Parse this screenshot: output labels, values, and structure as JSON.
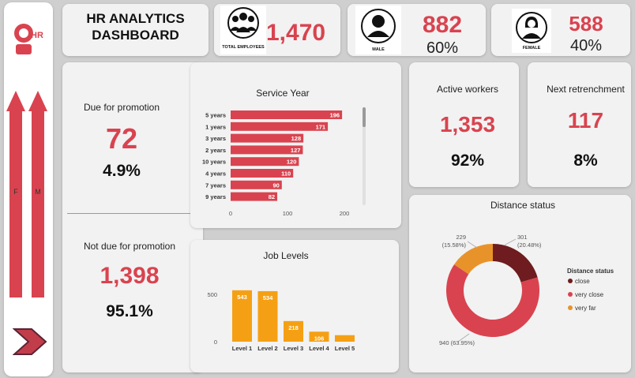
{
  "app": {
    "title_line1": "HR ANALYTICS",
    "title_line2": "DASHBOARD",
    "logo_text": "HR"
  },
  "sidebar": {
    "filter_f": "F",
    "filter_m": "M"
  },
  "kpis": {
    "total_employees": {
      "label": "TOTAL EMPLOYEES",
      "value": "1,470"
    },
    "male": {
      "label": "MALE",
      "value": "882",
      "pct": "60%"
    },
    "female": {
      "label": "FEMALE",
      "value": "588",
      "pct": "40%"
    },
    "due_promotion": {
      "label": "Due for promotion",
      "value": "72",
      "pct": "4.9%"
    },
    "not_due_promotion": {
      "label": "Not due for promotion",
      "value": "1,398",
      "pct": "95.1%"
    },
    "active_workers": {
      "label": "Active workers",
      "value": "1,353",
      "pct": "92%"
    },
    "next_retrenchment": {
      "label": "Next retrenchment",
      "value": "117",
      "pct": "8%"
    }
  },
  "colors": {
    "accent": "#d9434f",
    "bar_orange": "#f5a014",
    "donut_close": "#6e1c1f",
    "donut_very_close": "#d9434f",
    "donut_very_far": "#e8932a"
  },
  "chart_data": [
    {
      "type": "bar",
      "orientation": "horizontal",
      "title": "Service Year",
      "categories": [
        "5 years",
        "1 years",
        "3 years",
        "2 years",
        "10 years",
        "4 years",
        "7 years",
        "9 years"
      ],
      "values": [
        196,
        171,
        128,
        127,
        120,
        110,
        90,
        82
      ],
      "xlim": [
        0,
        200
      ],
      "xticks": [
        "0",
        "100",
        "200"
      ]
    },
    {
      "type": "bar",
      "title": "Job Levels",
      "categories": [
        "Level 1",
        "Level 2",
        "Level 3",
        "Level 4",
        "Level 5"
      ],
      "values": [
        543,
        534,
        218,
        106,
        69
      ],
      "value_labels": [
        "543",
        "534",
        "218",
        "106",
        ""
      ],
      "ylim": [
        0,
        600
      ],
      "yticks": [
        "0",
        "500"
      ]
    },
    {
      "type": "pie",
      "donut": true,
      "title": "Distance status",
      "legend_title": "Distance status",
      "legend_position": "right",
      "labels": [
        "close",
        "very close",
        "very far"
      ],
      "values": [
        301,
        940,
        229
      ],
      "percents": [
        "20.48%",
        "63.95%",
        "15.58%"
      ],
      "slice_labels": [
        "301",
        "940 (63.95%)",
        "229"
      ],
      "slice_pct_labels": [
        "(20.48%)",
        "",
        "(15.58%)"
      ]
    }
  ]
}
